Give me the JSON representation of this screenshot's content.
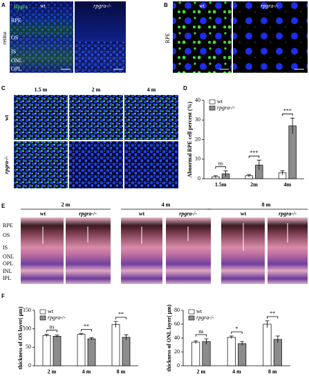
{
  "figure": {
    "A": {
      "letter": "A",
      "marker": "Rpgra",
      "groups": [
        "wt",
        "rpgra-/-"
      ],
      "side_label": "retina",
      "layers": [
        "RPE",
        "OS",
        "IS",
        "ONL",
        "OPL"
      ]
    },
    "B": {
      "letter": "B",
      "groups": [
        "wt",
        "rpgra-/-"
      ],
      "side_label": "RPE"
    },
    "C": {
      "letter": "C",
      "times": [
        "1.5 m",
        "2 m",
        "4 m"
      ],
      "rows": [
        "wt",
        "rpgra-/-"
      ]
    },
    "D": {
      "letter": "D"
    },
    "E": {
      "letter": "E",
      "times": [
        "2 m",
        "4 m",
        "8 m"
      ],
      "groups": [
        "wt",
        "rpgra-/-"
      ],
      "layers": [
        "RPE",
        "OS",
        "IS",
        "ONL",
        "OPL",
        "INL",
        "IPL"
      ]
    },
    "F": {
      "letter": "F"
    }
  },
  "chart_data": [
    {
      "type": "bar",
      "ylabel": "Abnormal RPE cell percent (%)",
      "categories": [
        "1.5m",
        "2m",
        "4m"
      ],
      "ylim": [
        0,
        40
      ],
      "yticks": [
        0,
        10,
        20,
        30,
        40
      ],
      "series": [
        {
          "name": "wt",
          "color": "#ffffff",
          "values": [
            1,
            1.5,
            3
          ],
          "errors": [
            0.5,
            0.6,
            1
          ]
        },
        {
          "name": "rpgra-/-",
          "color": "#8c8c8c",
          "values": [
            2.5,
            7,
            27
          ],
          "errors": [
            1.5,
            2.5,
            4
          ]
        }
      ],
      "annotations": [
        "ns",
        "***",
        "***"
      ]
    },
    {
      "type": "bar",
      "ylabel": "thickness of OS layer( μm)",
      "categories": [
        "2 m",
        "4 m",
        "8 m"
      ],
      "ylim": [
        0,
        150
      ],
      "yticks": [
        0,
        50,
        100,
        150
      ],
      "series": [
        {
          "name": "wt",
          "color": "#ffffff",
          "values": [
            82,
            85,
            112
          ],
          "errors": [
            3,
            2,
            8
          ]
        },
        {
          "name": "rpgra-/-",
          "color": "#8c8c8c",
          "values": [
            80,
            73,
            77
          ],
          "errors": [
            3,
            3,
            7
          ]
        }
      ],
      "annotations": [
        "ns",
        "**",
        "**"
      ]
    },
    {
      "type": "bar",
      "ylabel": "thickness of ONL layer( μm)",
      "categories": [
        "2 m",
        "4 m",
        "8 m"
      ],
      "ylim": [
        0,
        80
      ],
      "yticks": [
        0,
        20,
        40,
        60,
        80
      ],
      "series": [
        {
          "name": "wt",
          "color": "#ffffff",
          "values": [
            34,
            41,
            60
          ],
          "errors": [
            2,
            2,
            5
          ]
        },
        {
          "name": "rpgra-/-",
          "color": "#8c8c8c",
          "values": [
            35,
            32,
            38
          ],
          "errors": [
            4,
            3,
            5
          ]
        }
      ],
      "annotations": [
        "ns",
        "*",
        "**"
      ]
    }
  ]
}
